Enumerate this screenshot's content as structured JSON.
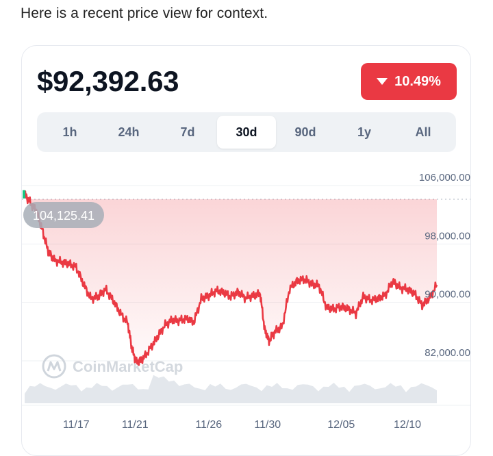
{
  "intro_text": "Here is a recent price view for context.",
  "price": "$92,392.63",
  "change": {
    "label": "10.49%",
    "direction": "down",
    "color": "#ea3943"
  },
  "tabs": [
    {
      "label": "1h",
      "active": false
    },
    {
      "label": "24h",
      "active": false
    },
    {
      "label": "7d",
      "active": false
    },
    {
      "label": "30d",
      "active": true
    },
    {
      "label": "90d",
      "active": false
    },
    {
      "label": "1y",
      "active": false
    },
    {
      "label": "All",
      "active": false
    }
  ],
  "watermark": "CoinMarketCap",
  "chart_data": {
    "type": "line",
    "y_ticks": [
      "106,000.00",
      "98,000.00",
      "90,000.00",
      "82,000.00"
    ],
    "y_tick_values": [
      106000,
      98000,
      90000,
      82000
    ],
    "x_ticks": [
      "11/17",
      "11/21",
      "11/26",
      "11/30",
      "12/05",
      "12/10"
    ],
    "x_tick_positions": [
      3.5,
      7.5,
      12.5,
      16.5,
      21.5,
      26
    ],
    "open_value": 104125.41,
    "open_label": "104,125.41",
    "line_color": "#ea3943",
    "grid": true,
    "series": [
      {
        "x": [
          0,
          0.4,
          0.8,
          1.2,
          1.6,
          2.0,
          2.5,
          3.0,
          3.5,
          4.0,
          4.5,
          5.0,
          5.5,
          6.0,
          6.5,
          7.0,
          7.3,
          7.6,
          8.0,
          8.5,
          9.0,
          9.5,
          10.0,
          10.5,
          11.0,
          11.5,
          12.0,
          12.5,
          13.0,
          13.5,
          14.0,
          14.5,
          15.0,
          15.5,
          16.0,
          16.3,
          16.6,
          17.0,
          17.5,
          18.0,
          18.5,
          19.0,
          19.5,
          20.0,
          20.5,
          21.0,
          21.5,
          22.0,
          22.5,
          23.0,
          23.5,
          24.0,
          24.5,
          25.0,
          25.5,
          26.0,
          26.5,
          27.0,
          27.5,
          28.0
        ],
        "y": [
          104800,
          103600,
          102500,
          99900,
          97000,
          95800,
          95500,
          95300,
          94800,
          92500,
          90500,
          90800,
          91800,
          90300,
          88500,
          87200,
          83500,
          81800,
          82200,
          83600,
          85200,
          86800,
          87600,
          87500,
          87800,
          87300,
          90500,
          90900,
          91600,
          91400,
          90800,
          91400,
          90600,
          90900,
          91200,
          86300,
          84700,
          86000,
          86700,
          91900,
          92900,
          93200,
          92500,
          92300,
          89300,
          89100,
          89400,
          89100,
          88500,
          90800,
          90300,
          90500,
          91000,
          92900,
          92000,
          91800,
          91200,
          89600,
          90600,
          92400
        ]
      }
    ]
  }
}
